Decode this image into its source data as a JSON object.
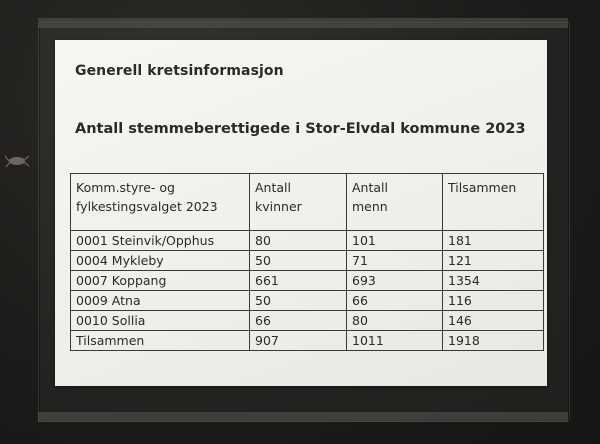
{
  "heading": "Generell kretsinformasjon",
  "subheading": "Antall stemmeberettigede i Stor-Elvdal kommune 2023",
  "table": {
    "headers": [
      {
        "line1": "Komm.styre- og",
        "line2": "fylkestingsvalget 2023"
      },
      {
        "line1": "Antall",
        "line2": "kvinner"
      },
      {
        "line1": "Antall",
        "line2": "menn"
      },
      {
        "line1": "Tilsammen",
        "line2": ""
      }
    ],
    "rows": [
      {
        "name": "0001 Steinvik/Opphus",
        "women": "80",
        "men": "101",
        "total": "181"
      },
      {
        "name": "0004 Mykleby",
        "women": "50",
        "men": "71",
        "total": "121"
      },
      {
        "name": "0007 Koppang",
        "women": "661",
        "men": "693",
        "total": "1354"
      },
      {
        "name": "0009 Atna",
        "women": "50",
        "men": "66",
        "total": "116"
      },
      {
        "name": "0010 Sollia",
        "women": "66",
        "men": "80",
        "total": "146"
      },
      {
        "name": "Tilsammen",
        "women": "907",
        "men": "1011",
        "total": "1918"
      }
    ]
  }
}
